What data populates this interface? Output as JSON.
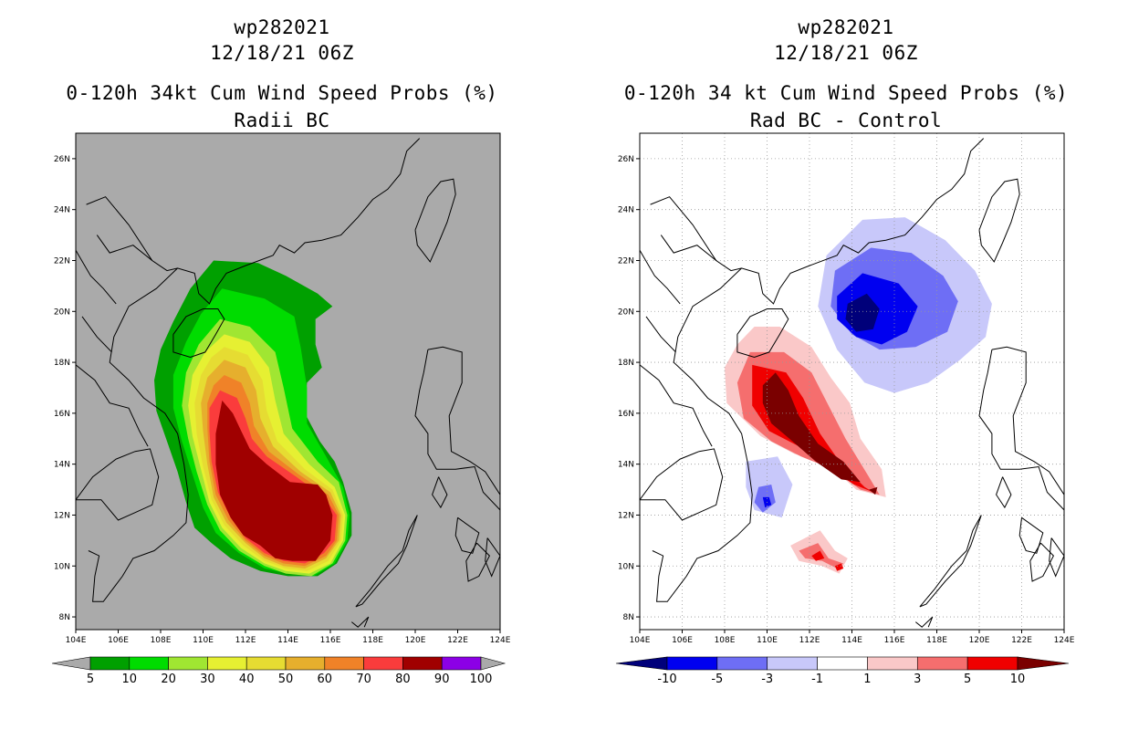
{
  "chart_data": [
    {
      "type": "filled-contour-map",
      "title": [
        "wp282021",
        "12/18/21 06Z",
        "0-120h 34kt Cum Wind Speed Probs (%)",
        "Radii BC"
      ],
      "lon_range": [
        104,
        124
      ],
      "lat_range": [
        7.5,
        27
      ],
      "xticks": [
        "104E",
        "106E",
        "108E",
        "110E",
        "112E",
        "114E",
        "116E",
        "118E",
        "120E",
        "122E",
        "124E"
      ],
      "yticks": [
        "8N",
        "10N",
        "12N",
        "14N",
        "16N",
        "18N",
        "20N",
        "22N",
        "24N",
        "26N"
      ],
      "colorbar": {
        "labels": [
          "5",
          "10",
          "20",
          "30",
          "40",
          "50",
          "60",
          "70",
          "80",
          "90",
          "100"
        ],
        "colors": [
          "#00a000",
          "#00dc00",
          "#a0e632",
          "#e6f032",
          "#e6dc32",
          "#e6af2d",
          "#f08228",
          "#fa3c3c",
          "#a00000",
          "#8c00e6"
        ]
      },
      "grid": false
    },
    {
      "type": "filled-contour-map",
      "title": [
        "wp282021",
        "12/18/21 06Z",
        "0-120h 34 kt Cum Wind Speed Probs (%)",
        "Rad BC - Control"
      ],
      "lon_range": [
        104,
        124
      ],
      "lat_range": [
        7.5,
        27
      ],
      "xticks": [
        "104E",
        "106E",
        "108E",
        "110E",
        "112E",
        "114E",
        "116E",
        "118E",
        "120E",
        "122E",
        "124E"
      ],
      "yticks": [
        "8N",
        "10N",
        "12N",
        "14N",
        "16N",
        "18N",
        "20N",
        "22N",
        "24N",
        "26N"
      ],
      "colorbar": {
        "labels": [
          "-10",
          "-5",
          "-3",
          "-1",
          "1",
          "3",
          "5",
          "10"
        ],
        "colors": [
          "#00007a",
          "#0000f0",
          "#6e6ef5",
          "#c8c8fa",
          "#ffffff",
          "#fac8c8",
          "#f56e6e",
          "#f00000",
          "#7a0000"
        ]
      },
      "grid": true
    }
  ]
}
